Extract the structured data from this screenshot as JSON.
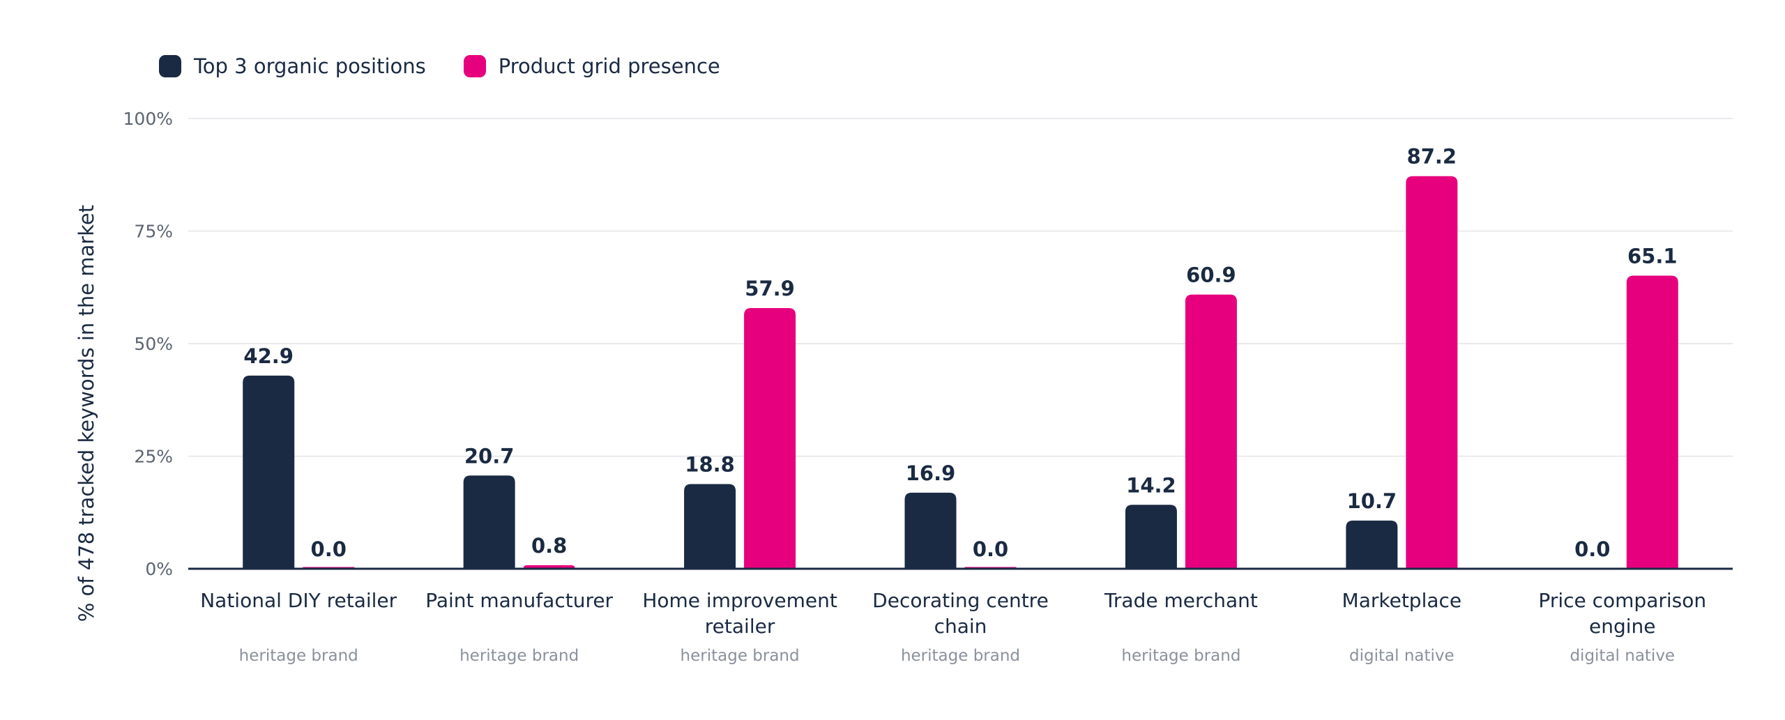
{
  "chart_data": {
    "type": "bar",
    "title": "",
    "xlabel": "",
    "ylabel": "% of 478 tracked keywords in the market",
    "ylim": [
      0,
      100
    ],
    "y_ticks": [
      {
        "value": 0,
        "label": "0%"
      },
      {
        "value": 25,
        "label": "25%"
      },
      {
        "value": 50,
        "label": "50%"
      },
      {
        "value": 75,
        "label": "75%"
      },
      {
        "value": 100,
        "label": "100%"
      }
    ],
    "grid": true,
    "legend_position": "top-left",
    "categories": [
      {
        "lines": [
          "National DIY retailer"
        ],
        "subtitle": "heritage brand"
      },
      {
        "lines": [
          "Paint manufacturer"
        ],
        "subtitle": "heritage brand"
      },
      {
        "lines": [
          "Home improvement",
          "retailer"
        ],
        "subtitle": "heritage brand"
      },
      {
        "lines": [
          "Decorating centre",
          "chain"
        ],
        "subtitle": "heritage brand"
      },
      {
        "lines": [
          "Trade merchant"
        ],
        "subtitle": "heritage brand"
      },
      {
        "lines": [
          "Marketplace"
        ],
        "subtitle": "digital native"
      },
      {
        "lines": [
          "Price comparison",
          "engine"
        ],
        "subtitle": "digital native"
      }
    ],
    "series": [
      {
        "name": "Top 3 organic positions",
        "color": "#1a2a42",
        "values": [
          42.9,
          20.7,
          18.8,
          16.9,
          14.2,
          10.7,
          0.0
        ],
        "labels": [
          "42.9",
          "20.7",
          "18.8",
          "16.9",
          "14.2",
          "10.7",
          "0.0"
        ]
      },
      {
        "name": "Product grid presence",
        "color": "#e6007e",
        "values": [
          0.0,
          0.8,
          57.9,
          0.0,
          60.9,
          87.2,
          65.1
        ],
        "labels": [
          "0.0",
          "0.8",
          "57.9",
          "0.0",
          "60.9",
          "87.2",
          "65.1"
        ]
      }
    ]
  }
}
